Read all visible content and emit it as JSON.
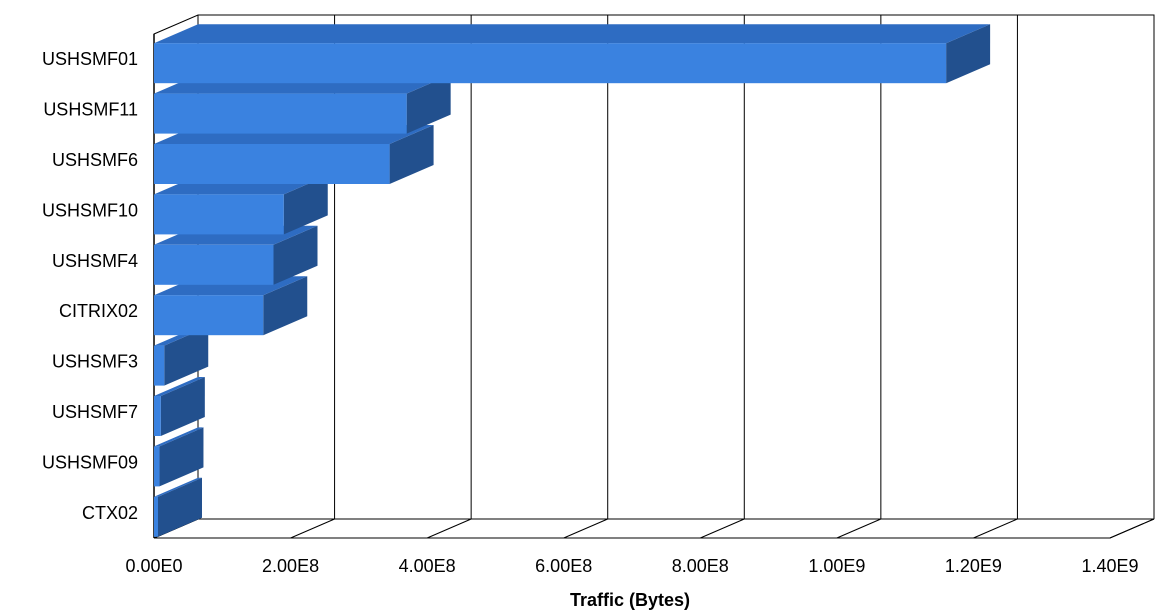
{
  "chart_data": {
    "type": "bar",
    "orientation": "horizontal",
    "three_d": true,
    "categories": [
      "USHSMF01",
      "USHSMF11",
      "USHSMF6",
      "USHSMF10",
      "USHSMF4",
      "CITRIX02",
      "USHSMF3",
      "USHSMF7",
      "USHSMF09",
      "CTX02"
    ],
    "values": [
      1160000000,
      370000000,
      345000000,
      190000000,
      175000000,
      160000000,
      15000000,
      10000000,
      8000000,
      3000000
    ],
    "xlabel": "Traffic (Bytes)",
    "ylabel": "",
    "xlim": [
      0,
      1400000000
    ],
    "xticks": [
      0,
      200000000,
      400000000,
      600000000,
      800000000,
      1000000000,
      1200000000,
      1400000000
    ],
    "xtick_labels": [
      "0.00E0",
      "2.00E8",
      "4.00E8",
      "6.00E8",
      "8.00E8",
      "1.00E9",
      "1.20E9",
      "1.40E9"
    ],
    "grid": true,
    "legend": "none",
    "colors": {
      "bar_front": "#3a82e0",
      "bar_top": "#2e6cc2",
      "bar_side": "#22508e",
      "grid": "#000000"
    }
  }
}
